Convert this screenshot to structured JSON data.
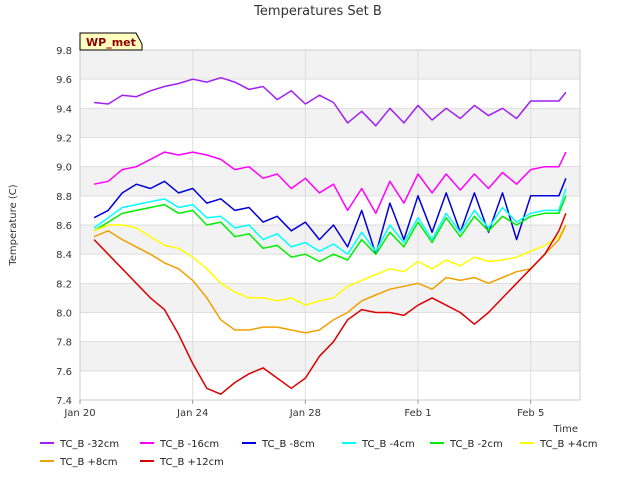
{
  "chart_data": {
    "type": "line",
    "title": "Temperatures Set B",
    "xlabel": "Time",
    "ylabel": "Temperature (C)",
    "badge": "WP_met",
    "ylim": [
      7.4,
      9.8
    ],
    "yticks": [
      7.4,
      7.6,
      7.8,
      8.0,
      8.2,
      8.4,
      8.6,
      8.8,
      9.0,
      9.2,
      9.4,
      9.6,
      9.8
    ],
    "yticklabels": [
      "7.4",
      "7.6",
      "7.8",
      "8.0",
      "8.2",
      "8.4",
      "8.6",
      "8.8",
      "9.0",
      "9.2",
      "9.4",
      "9.6",
      "9.8"
    ],
    "xlim": [
      "2024-01-20",
      "2024-02-06T18:00"
    ],
    "xticks": [
      "2024-01-20",
      "2024-01-24",
      "2024-01-28",
      "2024-02-01",
      "2024-02-05"
    ],
    "xticklabels": [
      "Jan 20",
      "Jan 24",
      "Jan 28",
      "Feb 1",
      "Feb 5"
    ],
    "grid": true,
    "legend_position": "bottom",
    "series": [
      {
        "name": "TC_B -32cm",
        "color": "#a020f0",
        "x": [
          "2024-01-20T12:00",
          "2024-01-21",
          "2024-01-21T12:00",
          "2024-01-22",
          "2024-01-22T12:00",
          "2024-01-23",
          "2024-01-23T12:00",
          "2024-01-24",
          "2024-01-24T12:00",
          "2024-01-25",
          "2024-01-25T12:00",
          "2024-01-26",
          "2024-01-26T12:00",
          "2024-01-27",
          "2024-01-27T12:00",
          "2024-01-28",
          "2024-01-28T12:00",
          "2024-01-29",
          "2024-01-29T12:00",
          "2024-01-30",
          "2024-01-30T12:00",
          "2024-01-31",
          "2024-01-31T12:00",
          "2024-02-01",
          "2024-02-01T12:00",
          "2024-02-02",
          "2024-02-02T12:00",
          "2024-02-03",
          "2024-02-03T12:00",
          "2024-02-04",
          "2024-02-04T12:00",
          "2024-02-05",
          "2024-02-05T12:00",
          "2024-02-06",
          "2024-02-06T06:00"
        ],
        "y": [
          9.44,
          9.43,
          9.49,
          9.48,
          9.52,
          9.55,
          9.57,
          9.6,
          9.58,
          9.61,
          9.58,
          9.53,
          9.55,
          9.46,
          9.52,
          9.43,
          9.49,
          9.44,
          9.3,
          9.38,
          9.28,
          9.4,
          9.3,
          9.42,
          9.32,
          9.4,
          9.33,
          9.42,
          9.35,
          9.4,
          9.33,
          9.45,
          9.45,
          9.45,
          9.51
        ]
      },
      {
        "name": "TC_B -16cm",
        "color": "#ff00ff",
        "x": [
          "2024-01-20T12:00",
          "2024-01-21",
          "2024-01-21T12:00",
          "2024-01-22",
          "2024-01-22T12:00",
          "2024-01-23",
          "2024-01-23T12:00",
          "2024-01-24",
          "2024-01-24T12:00",
          "2024-01-25",
          "2024-01-25T12:00",
          "2024-01-26",
          "2024-01-26T12:00",
          "2024-01-27",
          "2024-01-27T12:00",
          "2024-01-28",
          "2024-01-28T12:00",
          "2024-01-29",
          "2024-01-29T12:00",
          "2024-01-30",
          "2024-01-30T12:00",
          "2024-01-31",
          "2024-01-31T12:00",
          "2024-02-01",
          "2024-02-01T12:00",
          "2024-02-02",
          "2024-02-02T12:00",
          "2024-02-03",
          "2024-02-03T12:00",
          "2024-02-04",
          "2024-02-04T12:00",
          "2024-02-05",
          "2024-02-05T12:00",
          "2024-02-06",
          "2024-02-06T06:00"
        ],
        "y": [
          8.88,
          8.9,
          8.98,
          9.0,
          9.05,
          9.1,
          9.08,
          9.1,
          9.08,
          9.05,
          8.98,
          9.0,
          8.92,
          8.95,
          8.85,
          8.92,
          8.82,
          8.88,
          8.7,
          8.85,
          8.68,
          8.9,
          8.75,
          8.95,
          8.82,
          8.95,
          8.84,
          8.95,
          8.85,
          8.96,
          8.88,
          8.98,
          9.0,
          9.0,
          9.1
        ]
      },
      {
        "name": "TC_B -8cm",
        "color": "#0000dd",
        "x": [
          "2024-01-20T12:00",
          "2024-01-21",
          "2024-01-21T12:00",
          "2024-01-22",
          "2024-01-22T12:00",
          "2024-01-23",
          "2024-01-23T12:00",
          "2024-01-24",
          "2024-01-24T12:00",
          "2024-01-25",
          "2024-01-25T12:00",
          "2024-01-26",
          "2024-01-26T12:00",
          "2024-01-27",
          "2024-01-27T12:00",
          "2024-01-28",
          "2024-01-28T12:00",
          "2024-01-29",
          "2024-01-29T12:00",
          "2024-01-30",
          "2024-01-30T12:00",
          "2024-01-31",
          "2024-01-31T12:00",
          "2024-02-01",
          "2024-02-01T12:00",
          "2024-02-02",
          "2024-02-02T12:00",
          "2024-02-03",
          "2024-02-03T12:00",
          "2024-02-04",
          "2024-02-04T12:00",
          "2024-02-05",
          "2024-02-05T12:00",
          "2024-02-06",
          "2024-02-06T06:00"
        ],
        "y": [
          8.65,
          8.7,
          8.82,
          8.88,
          8.85,
          8.9,
          8.82,
          8.85,
          8.75,
          8.78,
          8.7,
          8.72,
          8.62,
          8.66,
          8.56,
          8.62,
          8.5,
          8.6,
          8.45,
          8.7,
          8.4,
          8.75,
          8.5,
          8.8,
          8.55,
          8.82,
          8.55,
          8.82,
          8.55,
          8.82,
          8.5,
          8.8,
          8.8,
          8.8,
          8.92
        ]
      },
      {
        "name": "TC_B -4cm",
        "color": "#00ffff",
        "x": [
          "2024-01-20T12:00",
          "2024-01-21",
          "2024-01-21T12:00",
          "2024-01-22",
          "2024-01-22T12:00",
          "2024-01-23",
          "2024-01-23T12:00",
          "2024-01-24",
          "2024-01-24T12:00",
          "2024-01-25",
          "2024-01-25T12:00",
          "2024-01-26",
          "2024-01-26T12:00",
          "2024-01-27",
          "2024-01-27T12:00",
          "2024-01-28",
          "2024-01-28T12:00",
          "2024-01-29",
          "2024-01-29T12:00",
          "2024-01-30",
          "2024-01-30T12:00",
          "2024-01-31",
          "2024-01-31T12:00",
          "2024-02-01",
          "2024-02-01T12:00",
          "2024-02-02",
          "2024-02-02T12:00",
          "2024-02-03",
          "2024-02-03T12:00",
          "2024-02-04",
          "2024-02-04T12:00",
          "2024-02-05",
          "2024-02-05T12:00",
          "2024-02-06",
          "2024-02-06T06:00"
        ],
        "y": [
          8.58,
          8.65,
          8.72,
          8.74,
          8.76,
          8.78,
          8.72,
          8.74,
          8.65,
          8.66,
          8.58,
          8.6,
          8.5,
          8.54,
          8.45,
          8.48,
          8.42,
          8.47,
          8.4,
          8.55,
          8.42,
          8.6,
          8.48,
          8.65,
          8.5,
          8.68,
          8.55,
          8.7,
          8.58,
          8.72,
          8.62,
          8.68,
          8.7,
          8.7,
          8.85
        ]
      },
      {
        "name": "TC_B -2cm",
        "color": "#00ee00",
        "x": [
          "2024-01-20T12:00",
          "2024-01-21",
          "2024-01-21T12:00",
          "2024-01-22",
          "2024-01-22T12:00",
          "2024-01-23",
          "2024-01-23T12:00",
          "2024-01-24",
          "2024-01-24T12:00",
          "2024-01-25",
          "2024-01-25T12:00",
          "2024-01-26",
          "2024-01-26T12:00",
          "2024-01-27",
          "2024-01-27T12:00",
          "2024-01-28",
          "2024-01-28T12:00",
          "2024-01-29",
          "2024-01-29T12:00",
          "2024-01-30",
          "2024-01-30T12:00",
          "2024-01-31",
          "2024-01-31T12:00",
          "2024-02-01",
          "2024-02-01T12:00",
          "2024-02-02",
          "2024-02-02T12:00",
          "2024-02-03",
          "2024-02-03T12:00",
          "2024-02-04",
          "2024-02-04T12:00",
          "2024-02-05",
          "2024-02-05T12:00",
          "2024-02-06",
          "2024-02-06T06:00"
        ],
        "y": [
          8.56,
          8.62,
          8.68,
          8.7,
          8.72,
          8.74,
          8.68,
          8.7,
          8.6,
          8.62,
          8.52,
          8.54,
          8.44,
          8.46,
          8.38,
          8.4,
          8.35,
          8.4,
          8.36,
          8.5,
          8.4,
          8.55,
          8.45,
          8.62,
          8.48,
          8.65,
          8.52,
          8.66,
          8.56,
          8.66,
          8.6,
          8.66,
          8.68,
          8.68,
          8.8
        ]
      },
      {
        "name": "TC_B +4cm",
        "color": "#ffff00",
        "x": [
          "2024-01-20T12:00",
          "2024-01-21",
          "2024-01-21T12:00",
          "2024-01-22",
          "2024-01-22T12:00",
          "2024-01-23",
          "2024-01-23T12:00",
          "2024-01-24",
          "2024-01-24T12:00",
          "2024-01-25",
          "2024-01-25T12:00",
          "2024-01-26",
          "2024-01-26T12:00",
          "2024-01-27",
          "2024-01-27T12:00",
          "2024-01-28",
          "2024-01-28T12:00",
          "2024-01-29",
          "2024-01-29T12:00",
          "2024-01-30",
          "2024-01-30T12:00",
          "2024-01-31",
          "2024-01-31T12:00",
          "2024-02-01",
          "2024-02-01T12:00",
          "2024-02-02",
          "2024-02-02T12:00",
          "2024-02-03",
          "2024-02-03T12:00",
          "2024-02-04",
          "2024-02-04T12:00",
          "2024-02-05",
          "2024-02-05T12:00",
          "2024-02-06",
          "2024-02-06T06:00"
        ],
        "y": [
          8.56,
          8.6,
          8.6,
          8.58,
          8.52,
          8.46,
          8.44,
          8.38,
          8.3,
          8.2,
          8.14,
          8.1,
          8.1,
          8.08,
          8.1,
          8.05,
          8.08,
          8.1,
          8.18,
          8.22,
          8.26,
          8.3,
          8.28,
          8.35,
          8.3,
          8.36,
          8.32,
          8.38,
          8.35,
          8.36,
          8.38,
          8.42,
          8.46,
          8.52,
          8.6
        ]
      },
      {
        "name": "TC_B +8cm",
        "color": "#f0a000",
        "x": [
          "2024-01-20T12:00",
          "2024-01-21",
          "2024-01-21T12:00",
          "2024-01-22",
          "2024-01-22T12:00",
          "2024-01-23",
          "2024-01-23T12:00",
          "2024-01-24",
          "2024-01-24T12:00",
          "2024-01-25",
          "2024-01-25T12:00",
          "2024-01-26",
          "2024-01-26T12:00",
          "2024-01-27",
          "2024-01-27T12:00",
          "2024-01-28",
          "2024-01-28T12:00",
          "2024-01-29",
          "2024-01-29T12:00",
          "2024-01-30",
          "2024-01-30T12:00",
          "2024-01-31",
          "2024-01-31T12:00",
          "2024-02-01",
          "2024-02-01T12:00",
          "2024-02-02",
          "2024-02-02T12:00",
          "2024-02-03",
          "2024-02-03T12:00",
          "2024-02-04",
          "2024-02-04T12:00",
          "2024-02-05",
          "2024-02-05T12:00",
          "2024-02-06",
          "2024-02-06T06:00"
        ],
        "y": [
          8.52,
          8.56,
          8.5,
          8.45,
          8.4,
          8.34,
          8.3,
          8.22,
          8.1,
          7.95,
          7.88,
          7.88,
          7.9,
          7.9,
          7.88,
          7.86,
          7.88,
          7.95,
          8.0,
          8.08,
          8.12,
          8.16,
          8.18,
          8.2,
          8.16,
          8.24,
          8.22,
          8.24,
          8.2,
          8.24,
          8.28,
          8.3,
          8.4,
          8.5,
          8.6
        ]
      },
      {
        "name": "TC_B +12cm",
        "color": "#dd0000",
        "x": [
          "2024-01-20T12:00",
          "2024-01-21",
          "2024-01-21T12:00",
          "2024-01-22",
          "2024-01-22T12:00",
          "2024-01-23",
          "2024-01-23T12:00",
          "2024-01-24",
          "2024-01-24T12:00",
          "2024-01-25",
          "2024-01-25T12:00",
          "2024-01-26",
          "2024-01-26T12:00",
          "2024-01-27",
          "2024-01-27T12:00",
          "2024-01-28",
          "2024-01-28T12:00",
          "2024-01-29",
          "2024-01-29T12:00",
          "2024-01-30",
          "2024-01-30T12:00",
          "2024-01-31",
          "2024-01-31T12:00",
          "2024-02-01",
          "2024-02-01T12:00",
          "2024-02-02",
          "2024-02-02T12:00",
          "2024-02-03",
          "2024-02-03T12:00",
          "2024-02-04",
          "2024-02-04T12:00",
          "2024-02-05",
          "2024-02-05T12:00",
          "2024-02-06",
          "2024-02-06T06:00"
        ],
        "y": [
          8.5,
          8.4,
          8.3,
          8.2,
          8.1,
          8.02,
          7.85,
          7.65,
          7.48,
          7.44,
          7.52,
          7.58,
          7.62,
          7.55,
          7.48,
          7.55,
          7.7,
          7.8,
          7.95,
          8.02,
          8.0,
          8.0,
          7.98,
          8.05,
          8.1,
          8.05,
          8.0,
          7.92,
          8.0,
          8.1,
          8.2,
          8.3,
          8.4,
          8.56,
          8.68
        ]
      }
    ]
  }
}
